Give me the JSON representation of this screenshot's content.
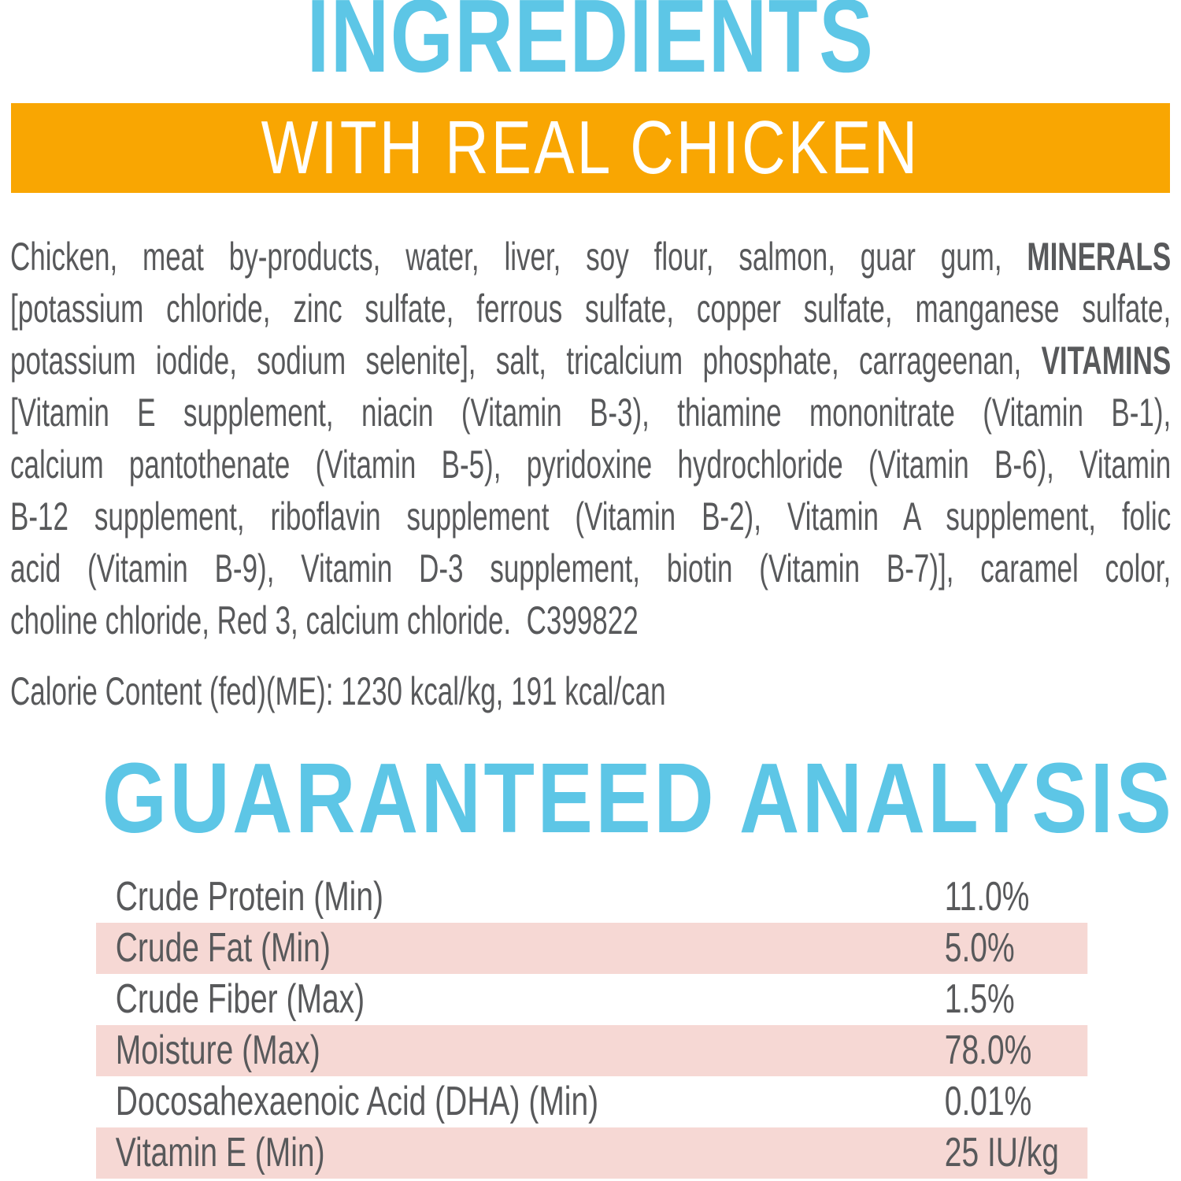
{
  "header": {
    "title": "INGREDIENTS",
    "banner": "WITH REAL CHICKEN"
  },
  "ingredients": {
    "lines": [
      {
        "justify": true,
        "segments": [
          {
            "text": "Chicken, meat by-products, water, liver, soy flour, salmon, guar gum, ",
            "bold": false
          },
          {
            "text": "MINERALS",
            "bold": true
          }
        ]
      },
      {
        "justify": true,
        "segments": [
          {
            "text": "[potassium chloride, zinc sulfate, ferrous sulfate, copper sulfate, manganese sulfate,",
            "bold": false
          }
        ]
      },
      {
        "justify": true,
        "segments": [
          {
            "text": "potassium iodide, sodium selenite], salt, tricalcium phosphate, carrageenan, ",
            "bold": false
          },
          {
            "text": "VITAMINS",
            "bold": true
          }
        ]
      },
      {
        "justify": true,
        "segments": [
          {
            "text": "[Vitamin E supplement, niacin (Vitamin B-3), thiamine mononitrate (Vitamin B-1),",
            "bold": false
          }
        ]
      },
      {
        "justify": true,
        "segments": [
          {
            "text": "calcium pantothenate (Vitamin B-5), pyridoxine hydrochloride (Vitamin B-6), Vitamin",
            "bold": false
          }
        ]
      },
      {
        "justify": true,
        "segments": [
          {
            "text": "B-12 supplement, riboflavin supplement (Vitamin B-2), Vitamin A supplement, folic",
            "bold": false
          }
        ]
      },
      {
        "justify": true,
        "segments": [
          {
            "text": "acid (Vitamin B-9), Vitamin D-3 supplement, biotin (Vitamin B-7)], caramel color,",
            "bold": false
          }
        ]
      },
      {
        "justify": false,
        "segments": [
          {
            "text": "choline chloride, Red 3, calcium chloride.  C399822",
            "bold": false
          }
        ]
      }
    ],
    "calorie_line": "Calorie Content (fed)(ME): 1230 kcal/kg, 191 kcal/can"
  },
  "analysis": {
    "title": "GUARANTEED ANALYSIS",
    "rows": [
      {
        "label": "Crude Protein (Min)",
        "value": "11.0%",
        "shaded": false
      },
      {
        "label": "Crude Fat (Min)",
        "value": "5.0%",
        "shaded": true
      },
      {
        "label": "Crude Fiber (Max)",
        "value": "1.5%",
        "shaded": false
      },
      {
        "label": "Moisture (Max)",
        "value": "78.0%",
        "shaded": true
      },
      {
        "label": "Docosahexaenoic Acid (DHA) (Min)",
        "value": "0.01%",
        "shaded": false
      },
      {
        "label": "Vitamin E (Min)",
        "value": "25 IU/kg",
        "shaded": true
      }
    ]
  },
  "colors": {
    "accent_cyan": "#5DC6E6",
    "banner_orange": "#F9A602",
    "row_pink": "#F6D8D4",
    "text_gray": "#58595B",
    "banner_text": "#FFFFFF"
  }
}
